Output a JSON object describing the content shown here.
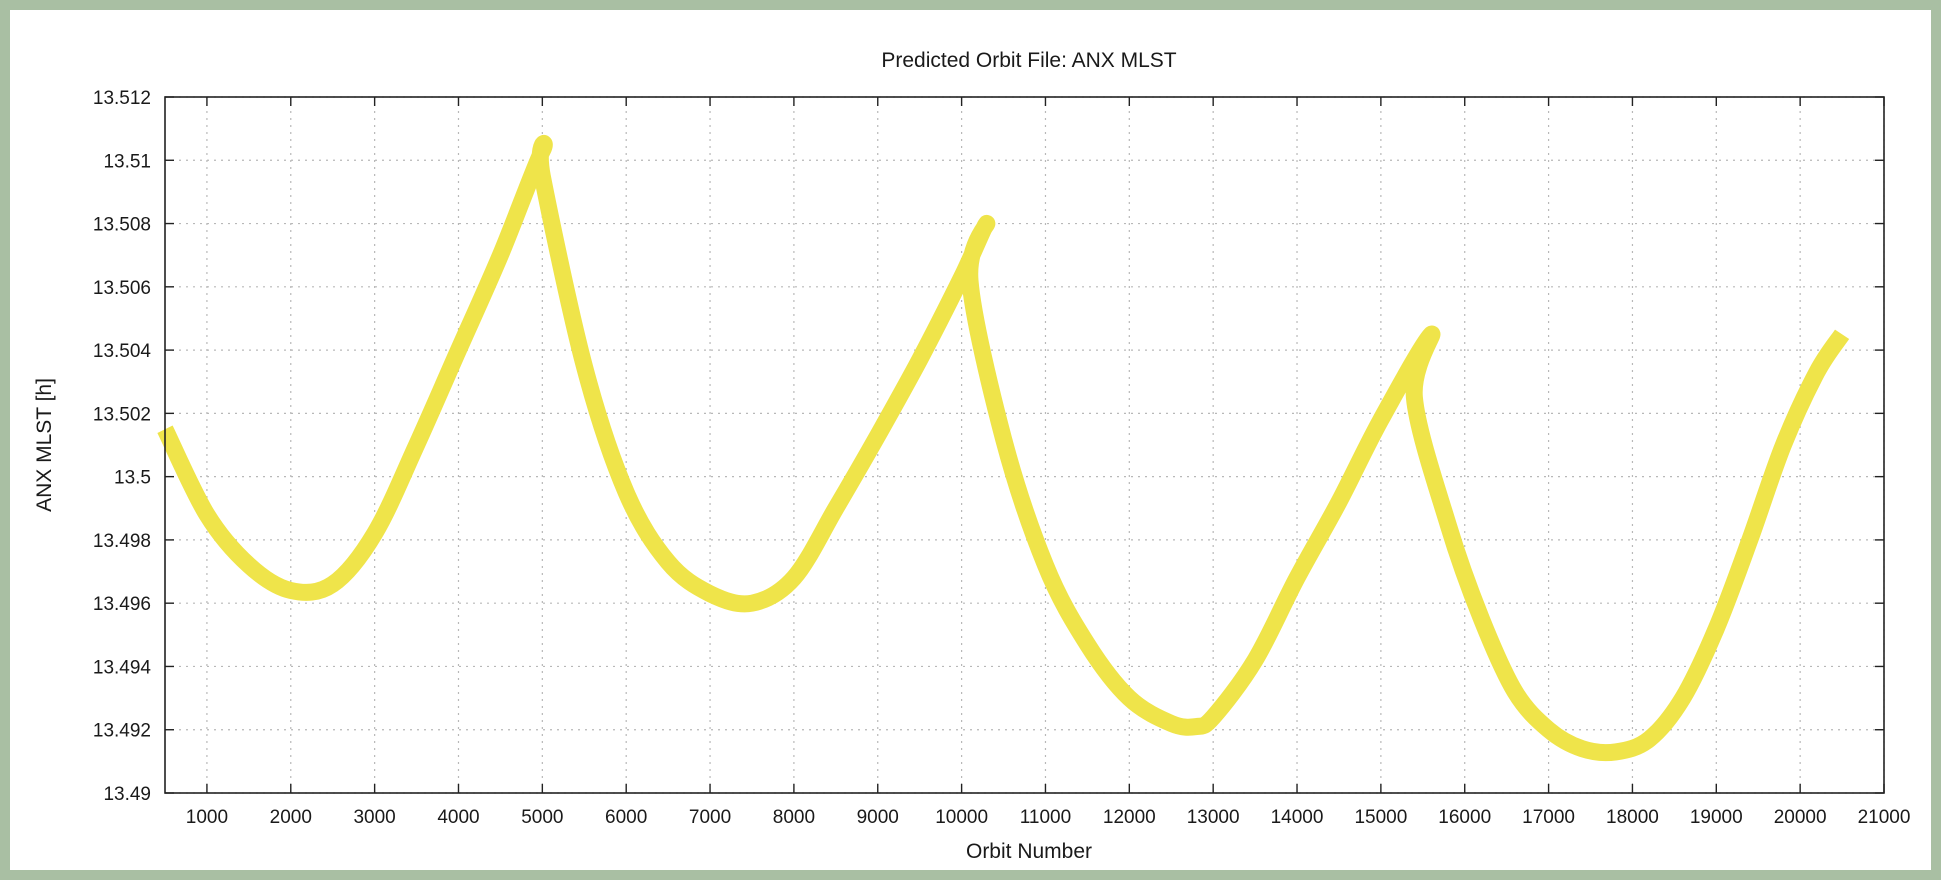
{
  "chart_data": {
    "type": "line",
    "title": "Predicted Orbit File: ANX MLST",
    "xlabel": "Orbit Number",
    "ylabel": "ANX MLST [h]",
    "xlim": [
      500,
      21000
    ],
    "ylim": [
      13.49,
      13.512
    ],
    "xticks": [
      1000,
      2000,
      3000,
      4000,
      5000,
      6000,
      7000,
      8000,
      9000,
      10000,
      11000,
      12000,
      13000,
      14000,
      15000,
      16000,
      17000,
      18000,
      19000,
      20000,
      21000
    ],
    "yticks": [
      13.49,
      13.492,
      13.494,
      13.496,
      13.498,
      13.5,
      13.502,
      13.504,
      13.506,
      13.508,
      13.51,
      13.512
    ],
    "ytick_labels": [
      "13.49",
      "13.492",
      "13.494",
      "13.496",
      "13.498",
      "13.5",
      "13.502",
      "13.504",
      "13.506",
      "13.508",
      "13.51",
      "13.512"
    ],
    "grid": true,
    "legend": false,
    "series": [
      {
        "color": "#efe44a",
        "x": [
          500,
          1000,
          1500,
          2000,
          2500,
          3000,
          3500,
          4000,
          4500,
          5000,
          5000,
          5500,
          6000,
          6500,
          7000,
          7500,
          8000,
          8500,
          9000,
          9500,
          10000,
          10300,
          10100,
          10500,
          11000,
          11500,
          12000,
          12500,
          12800,
          13000,
          13500,
          14000,
          14500,
          15000,
          15600,
          15400,
          15800,
          16200,
          16600,
          17000,
          17400,
          17800,
          18200,
          18600,
          19000,
          19400,
          19800,
          20200,
          20500
        ],
        "y": [
          13.5015,
          13.4988,
          13.4972,
          13.4964,
          13.4966,
          13.4982,
          13.501,
          13.504,
          13.507,
          13.5103,
          13.5095,
          13.5035,
          13.4995,
          13.4973,
          13.4963,
          13.496,
          13.4968,
          13.499,
          13.5013,
          13.5037,
          13.5063,
          13.508,
          13.5062,
          13.5012,
          13.4972,
          13.4947,
          13.493,
          13.4922,
          13.4921,
          13.4924,
          13.4942,
          13.4968,
          13.4992,
          13.5018,
          13.5045,
          13.5025,
          13.4985,
          13.4955,
          13.4932,
          13.492,
          13.4914,
          13.4913,
          13.4917,
          13.493,
          13.4952,
          13.498,
          13.501,
          13.5033,
          13.5045
        ]
      }
    ]
  }
}
